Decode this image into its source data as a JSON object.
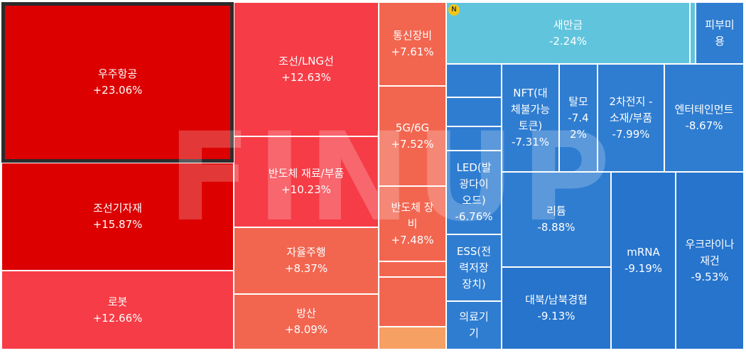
{
  "watermark": "FINUP",
  "badge": "N",
  "colors": {
    "strong_up": "#dc0000",
    "up": "#f63c46",
    "mid_up": "#f05a4a",
    "light_up": "#f2634e",
    "pale_up": "#f6a064",
    "flat_blue": "#61c4dd",
    "down": "#2f7dd1",
    "deep_down": "#2674cc",
    "selected_border": "#2b2b2b"
  },
  "tiles": [
    {
      "id": "aerospace",
      "label": "우주항공",
      "change": "+23.06%",
      "color": "#dc0000",
      "selected": true
    },
    {
      "id": "shipbuilding-equip",
      "label": "조선기자재",
      "change": "+15.87%",
      "color": "#dc0000"
    },
    {
      "id": "robot",
      "label": "로봇",
      "change": "+12.66%",
      "color": "#f63c46"
    },
    {
      "id": "shipbuilding-lng",
      "label": "조선/LNG선",
      "change": "+12.63%",
      "color": "#f63c46"
    },
    {
      "id": "semi-materials",
      "label": "반도체 재료/부품",
      "change": "+10.23%",
      "color": "#f63c46"
    },
    {
      "id": "autonomous-driving",
      "label": "자율주행",
      "change": "+8.37%",
      "color": "#f26650"
    },
    {
      "id": "defense",
      "label": "방산",
      "change": "+8.09%",
      "color": "#f26650"
    },
    {
      "id": "telecom-equip",
      "label": "통신장비",
      "change": "+7.61%",
      "color": "#f26650"
    },
    {
      "id": "5g-6g",
      "label": "5G/6G",
      "change": "+7.52%",
      "color": "#f26650"
    },
    {
      "id": "semi-equipment",
      "label": "반도체 장\n비",
      "change": "+7.48%",
      "color": "#f26650"
    },
    {
      "id": "small-1",
      "label": "",
      "change": "",
      "color": "#f26650"
    },
    {
      "id": "small-2",
      "label": "",
      "change": "",
      "color": "#f26650"
    },
    {
      "id": "small-3",
      "label": "",
      "change": "",
      "color": "#f26650"
    },
    {
      "id": "small-4",
      "label": "",
      "change": "",
      "color": "#f6a064"
    },
    {
      "id": "won-gold",
      "label": "새만금",
      "change": "-2.24%",
      "color": "#61c4dd"
    },
    {
      "id": "small-5",
      "label": "",
      "change": "",
      "color": "#61c4dd"
    },
    {
      "id": "beauty",
      "label": "피부미\n용",
      "change": "",
      "color": "#2f7dd1"
    },
    {
      "id": "small-6",
      "label": "",
      "change": "",
      "color": "#2f7dd1"
    },
    {
      "id": "small-7",
      "label": "",
      "change": "",
      "color": "#2f7dd1"
    },
    {
      "id": "small-8",
      "label": "",
      "change": "",
      "color": "#2f7dd1"
    },
    {
      "id": "led",
      "label": "LED(발\n광다이\n오드)",
      "change": "-6.76%",
      "color": "#2f7dd1"
    },
    {
      "id": "ess",
      "label": "ESS(전\n력저장\n장치)",
      "change": "",
      "color": "#2f7dd1"
    },
    {
      "id": "medical",
      "label": "의료기\n기",
      "change": "",
      "color": "#2f7dd1"
    },
    {
      "id": "nft",
      "label": "NFT(대\n체불가능\n토큰)",
      "change": "-7.31%",
      "color": "#2f7dd1"
    },
    {
      "id": "hair-loss",
      "label": "탈모",
      "change": "-7.4\n2%",
      "color": "#2f7dd1"
    },
    {
      "id": "battery",
      "label": "2차전지 -\n소재/부품",
      "change": "-7.99%",
      "color": "#2f7dd1"
    },
    {
      "id": "entertainment",
      "label": "엔터테인먼트",
      "change": "-8.67%",
      "color": "#2f7dd1"
    },
    {
      "id": "lithium",
      "label": "리튬",
      "change": "-8.88%",
      "color": "#2f7dd1"
    },
    {
      "id": "mrna",
      "label": "mRNA",
      "change": "-9.19%",
      "color": "#2674cc"
    },
    {
      "id": "ukraine",
      "label": "우크라이나\n재건",
      "change": "-9.53%",
      "color": "#2674cc"
    },
    {
      "id": "north-korea",
      "label": "대북/남북경협",
      "change": "-9.13%",
      "color": "#2674cc"
    }
  ]
}
